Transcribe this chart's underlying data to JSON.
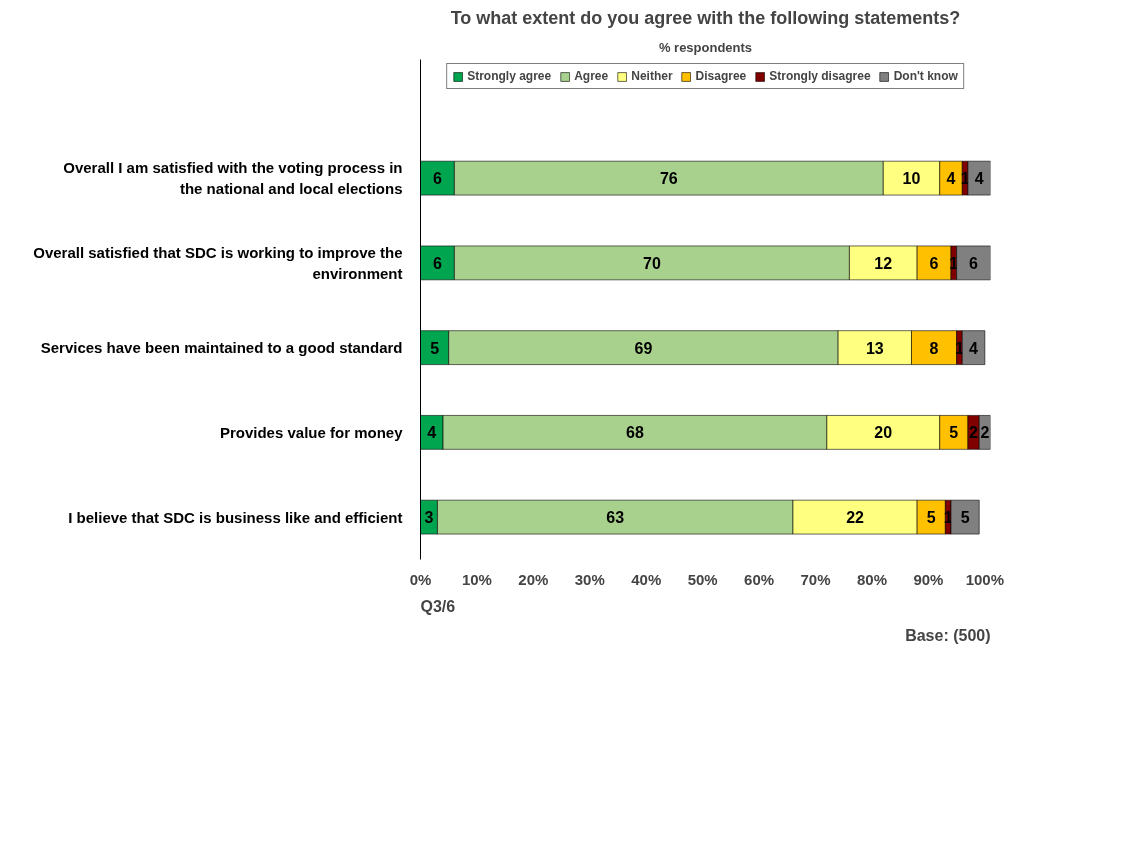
{
  "chart_data": {
    "type": "bar",
    "orientation": "horizontal",
    "stacked": true,
    "title": "To what extent do you agree with the following statements?",
    "subtitle": "% respondents",
    "categories": [
      "Overall I am satisfied with the voting process in the national and local elections",
      "Overall satisfied that SDC is working to improve the environment",
      "Services have been maintained to a good standard",
      "Provides value for money",
      "I believe that SDC is business like and efficient"
    ],
    "series": [
      {
        "name": "Strongly agree",
        "color": "#00a550",
        "values": [
          6,
          6,
          5,
          4,
          3
        ]
      },
      {
        "name": "Agree",
        "color": "#a9d18e",
        "values": [
          76,
          70,
          69,
          68,
          63
        ]
      },
      {
        "name": "Neither",
        "color": "#ffff80",
        "values": [
          10,
          12,
          13,
          20,
          22
        ]
      },
      {
        "name": "Disagree",
        "color": "#ffc000",
        "values": [
          4,
          6,
          8,
          5,
          5
        ]
      },
      {
        "name": "Strongly disagree",
        "color": "#800000",
        "values": [
          1,
          1,
          1,
          2,
          1
        ]
      },
      {
        "name": "Don't know",
        "color": "#808080",
        "values": [
          4,
          6,
          4,
          2,
          5
        ]
      }
    ],
    "data_labels": true,
    "xlim": [
      0,
      101
    ],
    "xticks": [
      {
        "value": 0,
        "label": "0%"
      },
      {
        "value": 10,
        "label": "10%"
      },
      {
        "value": 20,
        "label": "20%"
      },
      {
        "value": 30,
        "label": "30%"
      },
      {
        "value": 40,
        "label": "40%"
      },
      {
        "value": 50,
        "label": "50%"
      },
      {
        "value": 60,
        "label": "60%"
      },
      {
        "value": 70,
        "label": "70%"
      },
      {
        "value": 80,
        "label": "80%"
      },
      {
        "value": 90,
        "label": "90%"
      },
      {
        "value": 100,
        "label": "100%"
      }
    ],
    "grid": false,
    "legend": "top",
    "annotations": [
      "Q3/6",
      "Base: (500)"
    ]
  }
}
